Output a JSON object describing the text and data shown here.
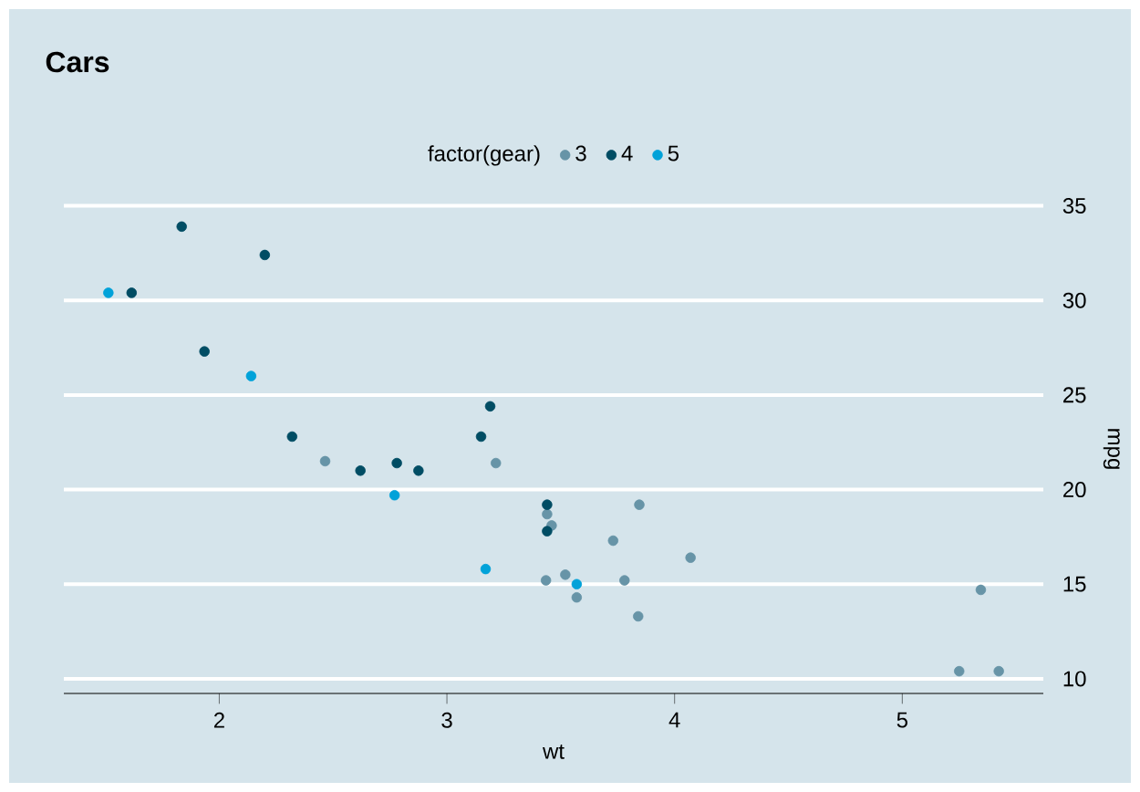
{
  "chart_data": {
    "type": "scatter",
    "title": "Cars",
    "xlabel": "wt",
    "ylabel": "mpg",
    "legend_title": "factor(gear)",
    "series": [
      {
        "name": "3",
        "color": "#6794a7",
        "x": [
          3.215,
          3.44,
          3.46,
          3.57,
          4.07,
          3.73,
          3.78,
          5.25,
          5.424,
          5.345,
          2.465,
          3.52,
          3.435,
          3.84,
          3.845
        ],
        "values": [
          21.4,
          18.7,
          18.1,
          14.3,
          16.4,
          17.3,
          15.2,
          10.4,
          10.4,
          14.7,
          21.5,
          15.5,
          15.2,
          13.3,
          19.2
        ]
      },
      {
        "name": "4",
        "color": "#014d64",
        "x": [
          2.62,
          2.875,
          2.32,
          3.19,
          3.15,
          3.44,
          3.44,
          2.2,
          1.615,
          1.835,
          1.935,
          2.78
        ],
        "values": [
          21.0,
          21.0,
          22.8,
          24.4,
          22.8,
          19.2,
          17.8,
          32.4,
          30.4,
          33.9,
          27.3,
          21.4
        ]
      },
      {
        "name": "5",
        "color": "#01a2d9",
        "x": [
          2.14,
          1.513,
          3.17,
          2.77,
          3.57
        ],
        "values": [
          26.0,
          30.4,
          15.8,
          19.7,
          15.0
        ]
      }
    ],
    "xlim": [
      1.3174,
      5.6196
    ],
    "ylim": [
      9.225,
      35.075
    ],
    "xticks": [
      2,
      3,
      4,
      5
    ],
    "yticks": [
      10,
      15,
      20,
      25,
      30,
      35
    ],
    "grid": "y",
    "legend": "top"
  }
}
